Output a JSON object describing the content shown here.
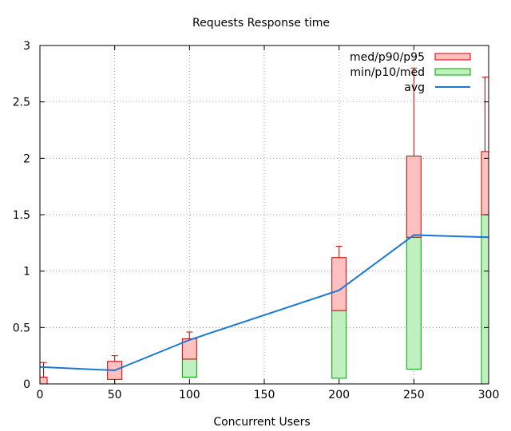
{
  "chart_data": {
    "type": "box",
    "title": "Requests Response time",
    "xlabel": "Concurrent Users",
    "ylabel": "",
    "xlim": [
      0,
      300
    ],
    "ylim": [
      0,
      3
    ],
    "xticks": [
      0,
      50,
      100,
      150,
      200,
      250,
      300
    ],
    "yticks": [
      0,
      0.5,
      1,
      1.5,
      2,
      2.5,
      3
    ],
    "ytick_labels": [
      "0",
      "0.5",
      "1",
      "1.5",
      "2",
      "2.5",
      "3"
    ],
    "grid": true,
    "legend_position": "top-right",
    "legend": [
      {
        "key": "upper",
        "label": "med/p90/p95",
        "color": "#ffc0c0",
        "stroke": "#d00000"
      },
      {
        "key": "lower",
        "label": "min/p10/med",
        "color": "#c0f0c0",
        "stroke": "#00a000"
      },
      {
        "key": "avg",
        "label": "avg",
        "color": "#1a78d8"
      }
    ],
    "groups": [
      {
        "x": 0,
        "min": 0.0,
        "p10": 0.0,
        "med": 0.0,
        "p90": 0.06,
        "p95": 0.19,
        "avg": 0.15
      },
      {
        "x": 50,
        "min": 0.0,
        "p10": 0.04,
        "med": 0.04,
        "p90": 0.2,
        "p95": 0.25,
        "avg": 0.12
      },
      {
        "x": 100,
        "min": 0.06,
        "p10": 0.06,
        "med": 0.22,
        "p90": 0.4,
        "p95": 0.46,
        "avg": 0.39
      },
      {
        "x": 200,
        "min": 0.05,
        "p10": 0.05,
        "med": 0.65,
        "p90": 1.12,
        "p95": 1.22,
        "avg": 0.83
      },
      {
        "x": 250,
        "min": 0.13,
        "p10": 0.13,
        "med": 1.3,
        "p90": 2.02,
        "p95": 2.8,
        "avg": 1.32
      },
      {
        "x": 300,
        "min": 0.0,
        "p10": 0.0,
        "med": 1.5,
        "p90": 2.06,
        "p95": 2.72,
        "avg": 1.3
      }
    ],
    "avg_line": {
      "x": [
        0,
        50,
        100,
        200,
        250,
        275,
        300
      ],
      "y": [
        0.15,
        0.12,
        0.39,
        0.83,
        1.32,
        1.31,
        1.3
      ]
    }
  }
}
